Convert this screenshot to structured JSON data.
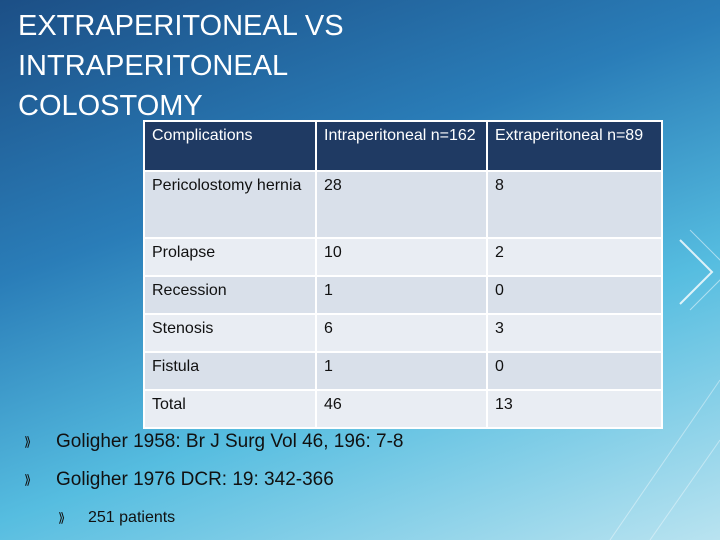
{
  "title_lines": [
    "EXTRAPERITONEAL VS",
    "INTRAPERITONEAL",
    "COLOSTOMY"
  ],
  "table": {
    "header": [
      "Complications",
      "Intraperitoneal n=162",
      "Extraperitoneal n=89"
    ],
    "rows": [
      [
        "Pericolostomy hernia",
        28,
        8
      ],
      [
        "Prolapse",
        10,
        2
      ],
      [
        "Recession",
        1,
        0
      ],
      [
        "Stenosis",
        6,
        3
      ],
      [
        "Fistula",
        1,
        0
      ],
      [
        "Total",
        46,
        13
      ]
    ]
  },
  "bullets": [
    "Goligher 1958:  Br J Surg Vol 46, 196: 7-8",
    "Goligher 1976 DCR: 19: 342-366"
  ],
  "sub_bullets": [
    "251 patients"
  ]
}
